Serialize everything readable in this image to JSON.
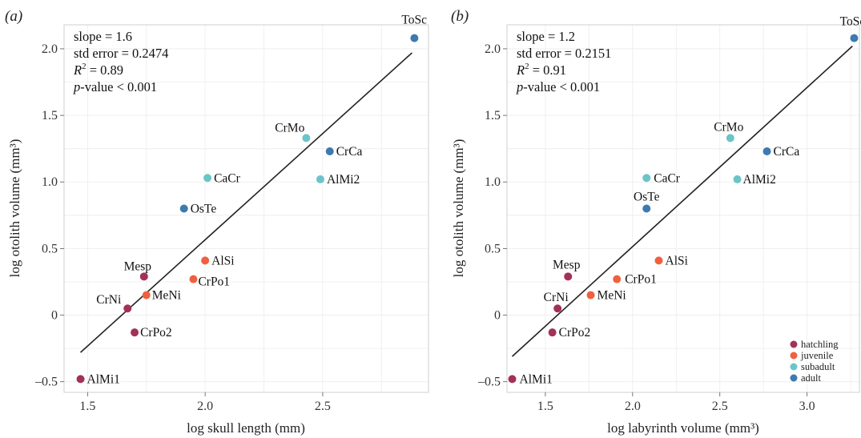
{
  "colors": {
    "hatchling": "#a3305a",
    "juvenile": "#f0603f",
    "subadult": "#6cc4c9",
    "adult": "#3c7ab0"
  },
  "legend": {
    "entries": [
      {
        "key": "hatchling",
        "label": "hatchling"
      },
      {
        "key": "juvenile",
        "label": "juvenile"
      },
      {
        "key": "subadult",
        "label": "subadult"
      },
      {
        "key": "adult",
        "label": "adult"
      }
    ]
  },
  "chart_data": [
    {
      "type": "scatter",
      "panel_label": "(a)",
      "xlabel": "log skull length (mm)",
      "ylabel": "log otolith volume (mm³)",
      "xlim": [
        1.4,
        2.95
      ],
      "ylim": [
        -0.58,
        2.18
      ],
      "xticks": [
        1.5,
        2.0,
        2.5
      ],
      "yticks": [
        -0.5,
        0,
        0.5,
        1.0,
        1.5,
        2.0
      ],
      "xtick_labels": [
        "1.5",
        "2.0",
        "2.5"
      ],
      "ytick_labels": [
        "–0.5",
        "0",
        "0.5",
        "1.0",
        "1.5",
        "2.0"
      ],
      "stats": {
        "slope": "slope = 1.6",
        "std_error": "std error = 0.2474",
        "r2_value": " = 0.89",
        "p_value": "-value < 0.001"
      },
      "fit_line": {
        "x": [
          1.47,
          2.88
        ],
        "y": [
          -0.28,
          1.97
        ]
      },
      "points": [
        {
          "label": "ToSc",
          "group": "adult",
          "x": 2.89,
          "y": 2.08
        },
        {
          "label": "CrMo",
          "group": "subadult",
          "x": 2.43,
          "y": 1.33
        },
        {
          "label": "CrCa",
          "group": "adult",
          "x": 2.53,
          "y": 1.23
        },
        {
          "label": "CaCr",
          "group": "subadult",
          "x": 2.01,
          "y": 1.03
        },
        {
          "label": "AlMi2",
          "group": "subadult",
          "x": 2.49,
          "y": 1.02
        },
        {
          "label": "OsTe",
          "group": "adult",
          "x": 1.91,
          "y": 0.8
        },
        {
          "label": "AlSi",
          "group": "juvenile",
          "x": 2.0,
          "y": 0.41
        },
        {
          "label": "Mesp",
          "group": "hatchling",
          "x": 1.74,
          "y": 0.29
        },
        {
          "label": "CrPo1",
          "group": "juvenile",
          "x": 1.95,
          "y": 0.27
        },
        {
          "label": "MeNi",
          "group": "juvenile",
          "x": 1.75,
          "y": 0.15
        },
        {
          "label": "CrNi",
          "group": "hatchling",
          "x": 1.67,
          "y": 0.05
        },
        {
          "label": "CrPo2",
          "group": "hatchling",
          "x": 1.7,
          "y": -0.13
        },
        {
          "label": "AlMi1",
          "group": "hatchling",
          "x": 1.47,
          "y": -0.48
        }
      ]
    },
    {
      "type": "scatter",
      "panel_label": "(b)",
      "xlabel": "log labyrinth volume (mm³)",
      "ylabel": "log otolith volume (mm³)",
      "xlim": [
        1.28,
        3.3
      ],
      "ylim": [
        -0.58,
        2.18
      ],
      "xticks": [
        1.5,
        2.0,
        2.5,
        3.0
      ],
      "yticks": [
        -0.5,
        0,
        0.5,
        1.0,
        1.5,
        2.0
      ],
      "xtick_labels": [
        "1.5",
        "2.0",
        "2.5",
        "3.0"
      ],
      "ytick_labels": [
        "–0.5",
        "0",
        "0.5",
        "1.0",
        "1.5",
        "2.0"
      ],
      "stats": {
        "slope": "slope = 1.2",
        "std_error": "std error = 0.2151",
        "r2_value": " = 0.91",
        "p_value": "-value < 0.001"
      },
      "fit_line": {
        "x": [
          1.31,
          3.26
        ],
        "y": [
          -0.31,
          2.02
        ]
      },
      "points": [
        {
          "label": "ToSc",
          "group": "adult",
          "x": 3.27,
          "y": 2.08
        },
        {
          "label": "CrMo",
          "group": "subadult",
          "x": 2.56,
          "y": 1.33
        },
        {
          "label": "CrCa",
          "group": "adult",
          "x": 2.77,
          "y": 1.23
        },
        {
          "label": "CaCr",
          "group": "subadult",
          "x": 2.08,
          "y": 1.03
        },
        {
          "label": "AlMi2",
          "group": "subadult",
          "x": 2.6,
          "y": 1.02
        },
        {
          "label": "OsTe",
          "group": "adult",
          "x": 2.08,
          "y": 0.8
        },
        {
          "label": "AlSi",
          "group": "juvenile",
          "x": 2.15,
          "y": 0.41
        },
        {
          "label": "Mesp",
          "group": "hatchling",
          "x": 1.63,
          "y": 0.29
        },
        {
          "label": "CrPo1",
          "group": "juvenile",
          "x": 1.91,
          "y": 0.27
        },
        {
          "label": "MeNi",
          "group": "juvenile",
          "x": 1.76,
          "y": 0.15
        },
        {
          "label": "CrNi",
          "group": "hatchling",
          "x": 1.57,
          "y": 0.05
        },
        {
          "label": "CrPo2",
          "group": "hatchling",
          "x": 1.54,
          "y": -0.13
        },
        {
          "label": "AlMi1",
          "group": "hatchling",
          "x": 1.31,
          "y": -0.48
        }
      ]
    }
  ]
}
